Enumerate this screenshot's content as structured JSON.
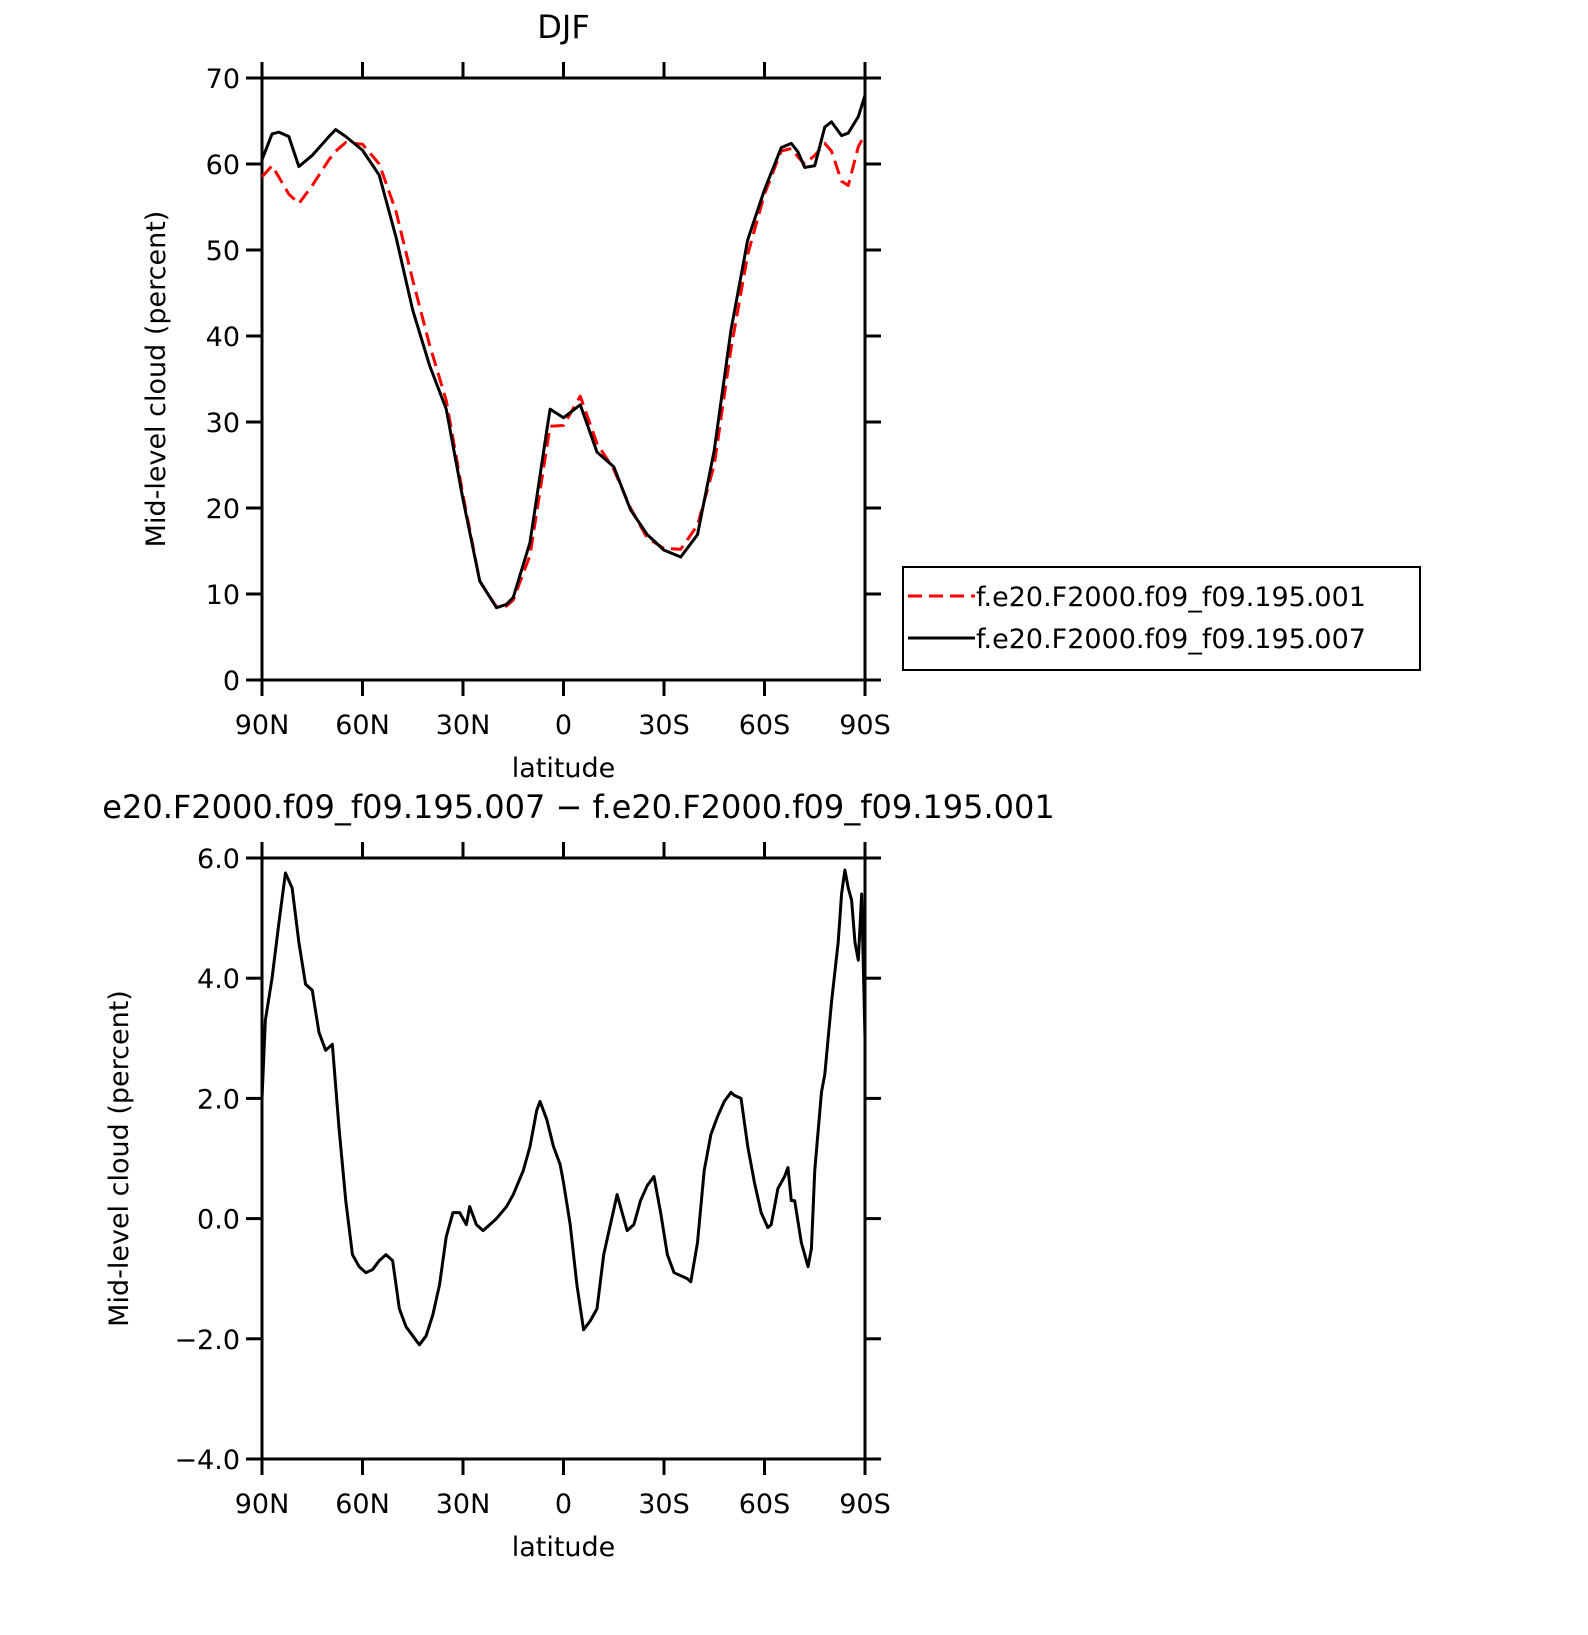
{
  "chart_data": [
    {
      "type": "line",
      "title": "DJF",
      "xlabel": "latitude",
      "ylabel": "Mid-level cloud (percent)",
      "x": [
        90,
        87,
        85,
        82,
        79,
        75,
        70,
        68,
        65,
        60,
        55,
        50,
        45,
        40,
        35,
        30,
        25,
        20,
        17,
        15,
        10,
        5,
        4,
        0,
        -5,
        -10,
        -15,
        -20,
        -25,
        -30,
        -35,
        -40,
        -45,
        -50,
        -55,
        -60,
        -65,
        -68,
        -70,
        -72,
        -75,
        -78,
        -80,
        -83,
        -85,
        -88,
        -90
      ],
      "xlim": [
        90,
        -90
      ],
      "xticks": [
        {
          "value": 90,
          "label": "90N"
        },
        {
          "value": 60,
          "label": "60N"
        },
        {
          "value": 30,
          "label": "30N"
        },
        0,
        {
          "value": -30,
          "label": "30S"
        },
        {
          "value": -60,
          "label": "60S"
        },
        {
          "value": -90,
          "label": "90S"
        }
      ],
      "ylim": [
        0,
        70
      ],
      "yticks": [
        0,
        10,
        20,
        30,
        40,
        50,
        60,
        70
      ],
      "legend_position": "right",
      "series": [
        {
          "name": "f.e20.F2000.f09_f09.195.001",
          "color": "#ff0000",
          "dash": "dashed",
          "values": [
            58.5,
            59.8,
            58.5,
            56.5,
            55.4,
            57.5,
            60.5,
            61.5,
            62.5,
            62.3,
            60,
            54.5,
            46.5,
            39,
            32.5,
            21.5,
            11.5,
            8.5,
            8.6,
            9.3,
            14.5,
            27,
            29.5,
            29.6,
            33,
            27.5,
            24.5,
            20,
            16.5,
            15.3,
            15.2,
            18,
            25,
            38.5,
            49.5,
            56.5,
            61.5,
            61.8,
            60.8,
            60,
            61,
            62.4,
            61.5,
            58,
            57.5,
            62,
            63.5
          ]
        },
        {
          "name": "f.e20.F2000.f09_f09.195.007",
          "color": "#000000",
          "dash": "solid",
          "values": [
            60.5,
            63.5,
            63.7,
            63.2,
            59.7,
            61,
            63.2,
            64,
            63.2,
            61.6,
            58.7,
            51.5,
            43,
            36.6,
            31.5,
            21,
            11.5,
            8.4,
            8.8,
            9.6,
            16,
            29,
            31.5,
            30.5,
            32,
            26.5,
            24.8,
            19.8,
            16.9,
            15.1,
            14.3,
            16.9,
            26.7,
            40.7,
            51.2,
            57,
            61.9,
            62.4,
            61.4,
            59.6,
            59.8,
            64.3,
            64.9,
            63.3,
            63.6,
            65.5,
            68
          ]
        }
      ]
    },
    {
      "type": "line",
      "title": "e20.F2000.f09_f09.195.007 − f.e20.F2000.f09_f09.195.001",
      "xlabel": "latitude",
      "ylabel": "Mid-level cloud (percent)",
      "x": [
        90,
        89,
        87,
        85,
        83,
        81,
        79,
        77,
        75,
        73,
        71,
        69,
        67,
        65,
        63,
        61,
        59,
        57,
        55,
        53,
        51,
        49,
        47,
        45,
        43,
        41,
        39,
        37,
        35,
        33,
        31,
        29,
        28,
        26,
        24,
        22,
        20,
        17,
        15,
        12,
        10,
        8,
        7,
        5,
        3,
        1,
        0,
        -2,
        -4,
        -6,
        -8,
        -10,
        -12,
        -14,
        -16,
        -18,
        -19,
        -21,
        -23,
        -25,
        -27,
        -29,
        -31,
        -33,
        -35,
        -37,
        -38,
        -40,
        -42,
        -44,
        -46,
        -48,
        -50,
        -51,
        -53,
        -55,
        -57,
        -59,
        -61,
        -62,
        -64,
        -66,
        -67,
        -68,
        -69,
        -71,
        -73,
        -74,
        -75,
        -77,
        -78,
        -80,
        -82,
        -83,
        -84,
        -85,
        -86,
        -87,
        -88,
        -89,
        -90
      ],
      "xlim": [
        90,
        -90
      ],
      "xticks": [
        {
          "value": 90,
          "label": "90N"
        },
        {
          "value": 60,
          "label": "60N"
        },
        {
          "value": 30,
          "label": "30N"
        },
        0,
        {
          "value": -30,
          "label": "30S"
        },
        {
          "value": -60,
          "label": "60S"
        },
        {
          "value": -90,
          "label": "90S"
        }
      ],
      "ylim": [
        -4,
        6
      ],
      "yticks": [
        {
          "value": -4,
          "label": "−4.0"
        },
        {
          "value": -2,
          "label": "−2.0"
        },
        {
          "value": 0,
          "label": "0.0"
        },
        {
          "value": 2,
          "label": "2.0"
        },
        {
          "value": 4,
          "label": "4.0"
        },
        {
          "value": 6,
          "label": "6.0"
        }
      ],
      "series": [
        {
          "color": "#000000",
          "dash": "solid",
          "values": [
            2.0,
            3.3,
            4.0,
            4.9,
            5.75,
            5.5,
            4.6,
            3.9,
            3.8,
            3.1,
            2.8,
            2.9,
            1.5,
            0.3,
            -0.6,
            -0.8,
            -0.9,
            -0.85,
            -0.7,
            -0.6,
            -0.7,
            -1.5,
            -1.8,
            -1.95,
            -2.1,
            -1.95,
            -1.6,
            -1.1,
            -0.3,
            0.1,
            0.1,
            -0.1,
            0.2,
            -0.1,
            -0.2,
            -0.1,
            0.0,
            0.2,
            0.4,
            0.8,
            1.2,
            1.8,
            1.95,
            1.65,
            1.2,
            0.9,
            0.6,
            -0.1,
            -1.1,
            -1.85,
            -1.7,
            -1.5,
            -0.6,
            -0.1,
            0.4,
            0.0,
            -0.2,
            -0.1,
            0.3,
            0.55,
            0.7,
            0.1,
            -0.6,
            -0.9,
            -0.95,
            -1.0,
            -1.05,
            -0.4,
            0.8,
            1.4,
            1.7,
            1.95,
            2.1,
            2.05,
            2.0,
            1.2,
            0.6,
            0.1,
            -0.15,
            -0.1,
            0.5,
            0.7,
            0.85,
            0.3,
            0.3,
            -0.4,
            -0.8,
            -0.5,
            0.8,
            2.1,
            2.4,
            3.6,
            4.6,
            5.4,
            5.8,
            5.5,
            5.3,
            4.6,
            4.3,
            5.4,
            3.0
          ]
        }
      ]
    }
  ]
}
